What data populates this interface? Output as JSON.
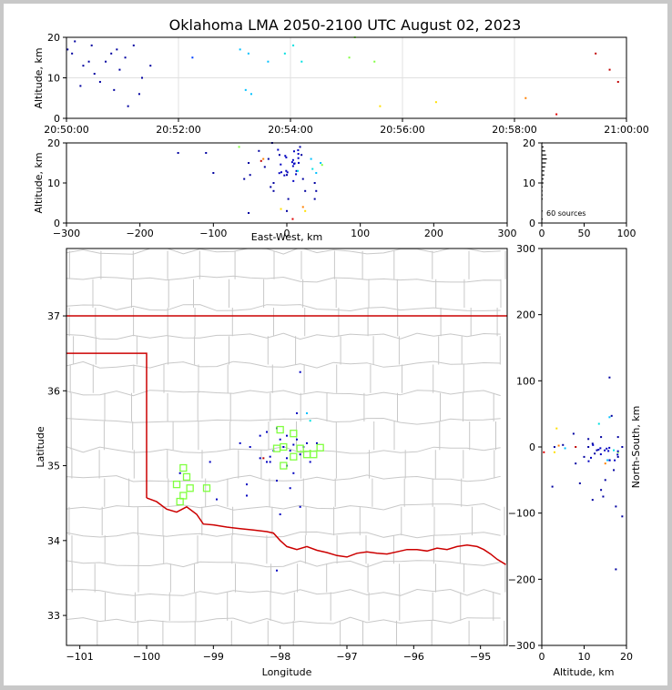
{
  "title": "Oklahoma LMA 2050-2100 UTC August 02, 2023",
  "colors": {
    "state_border": "#cc0000",
    "county": "#c8c8c8",
    "source_box": "#80ff40"
  },
  "chart_data": [
    {
      "type": "scatter",
      "name": "time-altitude",
      "ylabel": "Altitude, km",
      "ylim": [
        0,
        20
      ],
      "yticks": [
        "0",
        "10",
        "20"
      ],
      "xticks": [
        "20:50:00",
        "20:52:00",
        "20:54:00",
        "20:56:00",
        "20:58:00",
        "21:00:00"
      ],
      "grid": true
    },
    {
      "type": "scatter",
      "name": "eastwest-altitude",
      "xlabel": "East-West, km",
      "ylabel": "Altitude, km",
      "xlim": [
        -300,
        300
      ],
      "ylim": [
        0,
        20
      ],
      "xticks": [
        "−300",
        "−200",
        "−100",
        "0",
        "100",
        "200",
        "300"
      ],
      "yticks": [
        "0",
        "10",
        "20"
      ]
    },
    {
      "type": "bar",
      "name": "altitude-histogram",
      "annotation": "60 sources",
      "xlim": [
        0,
        100
      ],
      "ylim": [
        0,
        20
      ],
      "xticks": [
        "0",
        "50",
        "100"
      ],
      "yticks": [
        "0",
        "10",
        "20"
      ]
    },
    {
      "type": "scatter",
      "name": "plan-view",
      "xlabel": "Longitude",
      "ylabel": "Latitude",
      "xlim": [
        -101.2,
        -94.6
      ],
      "ylim": [
        32.6,
        37.9
      ],
      "xticks": [
        "−101",
        "−100",
        "−99",
        "−98",
        "−97",
        "−96",
        "−95"
      ],
      "yticks": [
        "33",
        "34",
        "35",
        "36",
        "37"
      ]
    },
    {
      "type": "scatter",
      "name": "altitude-northsouth",
      "xlabel": "Altitude, km",
      "ylabel": "North-South, km",
      "xlim": [
        0,
        20
      ],
      "ylim": [
        -300,
        300
      ],
      "xticks": [
        "0",
        "10",
        "20"
      ],
      "yticks": [
        "−300",
        "−200",
        "−100",
        "0",
        "100",
        "200",
        "300"
      ]
    }
  ]
}
